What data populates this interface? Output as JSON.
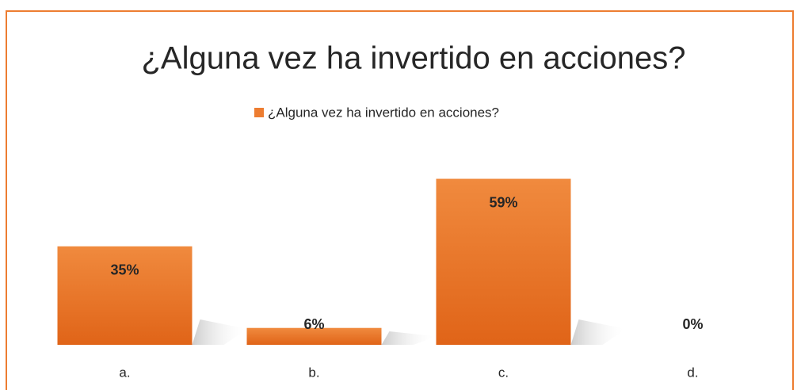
{
  "chart_data": {
    "type": "bar",
    "title": "¿Alguna vez ha invertido en acciones?",
    "categories": [
      "a.",
      "b.",
      "c.",
      "d."
    ],
    "series": [
      {
        "name": "¿Alguna vez ha invertido en acciones?",
        "color": "#ed7d31",
        "values": [
          35,
          6,
          59,
          0
        ],
        "value_labels": [
          "35%",
          "6%",
          "59%",
          "0%"
        ]
      }
    ],
    "legend": "top"
  }
}
